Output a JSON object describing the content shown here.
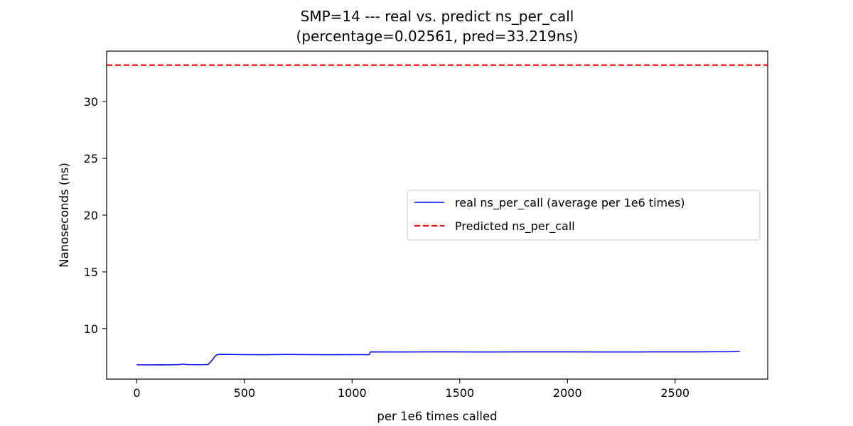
{
  "chart_data": {
    "type": "line",
    "title": "SMP=14 --- real vs. predict ns_per_call",
    "subtitle": "(percentage=0.02561, pred=33.219ns)",
    "xlabel": "per 1e6 times called",
    "ylabel": "Nanoseconds (ns)",
    "xlim": [
      -140,
      2930
    ],
    "ylim": [
      5.55,
      34.45
    ],
    "xticks": [
      0,
      500,
      1000,
      1500,
      2000,
      2500
    ],
    "yticks": [
      10,
      15,
      20,
      25,
      30
    ],
    "grid": false,
    "legend_position": "center-right",
    "series": [
      {
        "name": "real ns_per_call (average per 1e6 times)",
        "style": "solid",
        "color": "#0000ff",
        "points": [
          [
            0,
            6.82
          ],
          [
            50,
            6.8
          ],
          [
            100,
            6.82
          ],
          [
            150,
            6.81
          ],
          [
            200,
            6.83
          ],
          [
            215,
            6.88
          ],
          [
            230,
            6.83
          ],
          [
            280,
            6.82
          ],
          [
            330,
            6.83
          ],
          [
            345,
            7.1
          ],
          [
            355,
            7.35
          ],
          [
            365,
            7.6
          ],
          [
            375,
            7.72
          ],
          [
            400,
            7.73
          ],
          [
            500,
            7.71
          ],
          [
            600,
            7.7
          ],
          [
            700,
            7.72
          ],
          [
            800,
            7.71
          ],
          [
            900,
            7.7
          ],
          [
            1000,
            7.71
          ],
          [
            1080,
            7.7
          ],
          [
            1085,
            7.95
          ],
          [
            1200,
            7.94
          ],
          [
            1400,
            7.95
          ],
          [
            1600,
            7.94
          ],
          [
            1800,
            7.95
          ],
          [
            2000,
            7.95
          ],
          [
            2200,
            7.94
          ],
          [
            2400,
            7.95
          ],
          [
            2600,
            7.95
          ],
          [
            2800,
            7.97
          ]
        ]
      },
      {
        "name": "Predicted ns_per_call",
        "style": "dashed",
        "color": "#ff0000",
        "y": 33.219
      }
    ]
  }
}
